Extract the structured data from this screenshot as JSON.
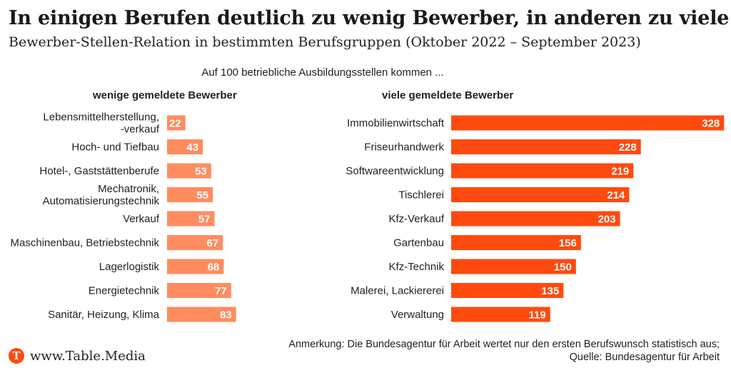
{
  "title": "In einigen Berufen deutlich zu wenig Bewerber, in anderen zu viele",
  "subtitle": "Bewerber-Stellen-Relation in bestimmten Berufsgruppen (Oktober 2022 – September 2023)",
  "intro": "Auf 100 betriebliche Ausbildungsstellen kommen ...",
  "note_line1": "Anmerkung: Die Bundesagentur für Arbeit wertet nur den ersten Berufswunsch statistisch aus;",
  "note_line2": "Quelle: Bundesagentur für Arbeit",
  "brand": {
    "icon_letter": "T",
    "text": "www.Table.Media",
    "icon_name": "table-media-logo-icon"
  },
  "colors": {
    "left_bar": "#ff8c5f",
    "right_bar": "#ff4a0f",
    "value_label": "#ffffff"
  },
  "chart_data": [
    {
      "type": "bar",
      "orientation": "horizontal",
      "title": "wenige gemeldete Bewerber",
      "categories": [
        [
          "Lebensmittelherstellung,",
          "-verkauf"
        ],
        [
          "Hoch- und Tiefbau"
        ],
        [
          "Hotel-, Gaststättenberufe"
        ],
        [
          "Mechatronik,",
          "Automatisierungstechnik"
        ],
        [
          "Verkauf"
        ],
        [
          "Maschinenbau, Betriebstechnik"
        ],
        [
          "Lagerlogistik"
        ],
        [
          "Energietechnik"
        ],
        [
          "Sanitär, Heizung, Klima"
        ]
      ],
      "values": [
        22,
        43,
        53,
        55,
        57,
        67,
        68,
        77,
        83
      ],
      "color": "#ff8c5f"
    },
    {
      "type": "bar",
      "orientation": "horizontal",
      "title": "viele gemeldete Bewerber",
      "categories": [
        [
          "Immobilienwirtschaft"
        ],
        [
          "Friseurhandwerk"
        ],
        [
          "Softwareentwicklung"
        ],
        [
          "Tischlerei"
        ],
        [
          "Kfz-Verkauf"
        ],
        [
          "Gartenbau"
        ],
        [
          "Kfz-Technik"
        ],
        [
          "Malerei, Lackiererei"
        ],
        [
          "Verwaltung"
        ]
      ],
      "values": [
        328,
        228,
        219,
        214,
        203,
        156,
        150,
        135,
        119
      ],
      "color": "#ff4a0f"
    }
  ]
}
